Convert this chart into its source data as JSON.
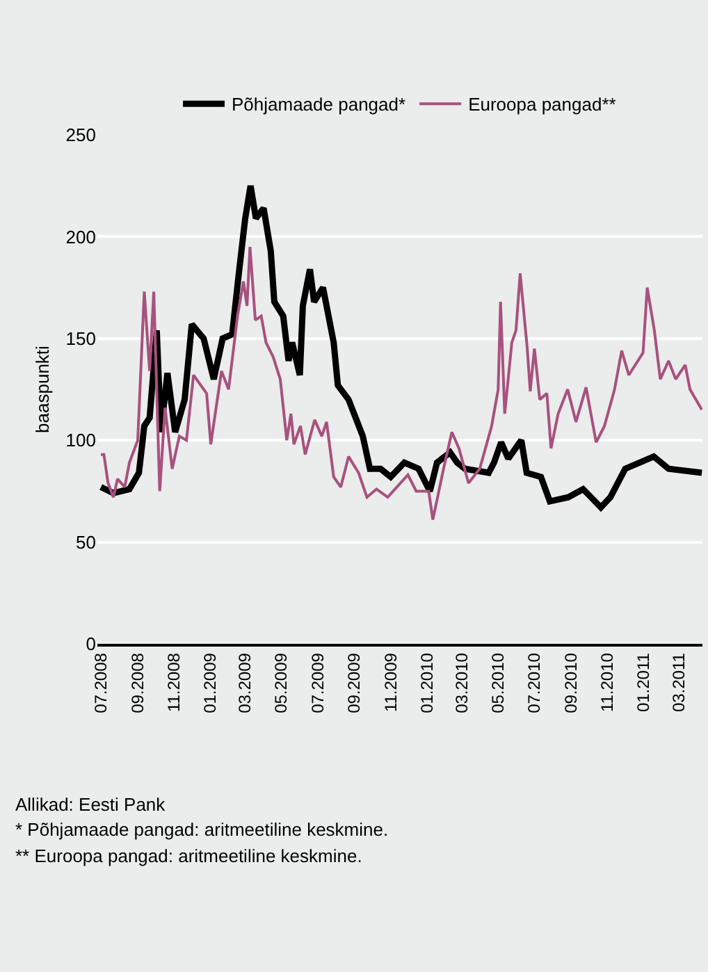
{
  "chart_data": {
    "type": "line",
    "ylabel": "baaspunkti",
    "grid": "y",
    "legend": "top",
    "xlim": [
      "2008-06-25",
      "2011-04-10"
    ],
    "xticks": [
      {
        "value": "2008-07-01",
        "label": "07.2008"
      },
      {
        "value": "2008-09-01",
        "label": "09.2008"
      },
      {
        "value": "2008-11-01",
        "label": "11.2008"
      },
      {
        "value": "2009-01-01",
        "label": "01.2009"
      },
      {
        "value": "2009-03-01",
        "label": "03.2009"
      },
      {
        "value": "2009-05-01",
        "label": "05.2009"
      },
      {
        "value": "2009-07-01",
        "label": "07.2009"
      },
      {
        "value": "2009-09-01",
        "label": "09.2009"
      },
      {
        "value": "2009-11-01",
        "label": "11.2009"
      },
      {
        "value": "2010-01-01",
        "label": "01.2010"
      },
      {
        "value": "2010-03-01",
        "label": "03.2010"
      },
      {
        "value": "2010-05-01",
        "label": "05.2010"
      },
      {
        "value": "2010-07-01",
        "label": "07.2010"
      },
      {
        "value": "2010-09-01",
        "label": "09.2010"
      },
      {
        "value": "2010-11-01",
        "label": "11.2010"
      },
      {
        "value": "2011-01-01",
        "label": "01.2011"
      },
      {
        "value": "2011-03-01",
        "label": "03.2011"
      }
    ],
    "ylim": [
      0,
      250
    ],
    "yticks": [
      0,
      50,
      100,
      150,
      200,
      250
    ],
    "series": [
      {
        "name": "Põhjamaade pangad*",
        "color": "#000000",
        "x": [
          "2008-07-01",
          "2008-07-22",
          "2008-08-18",
          "2008-09-03",
          "2008-09-12",
          "2008-09-21",
          "2008-10-03",
          "2008-10-10",
          "2008-10-21",
          "2008-11-03",
          "2008-11-19",
          "2008-12-01",
          "2008-12-21",
          "2009-01-07",
          "2009-01-22",
          "2009-02-07",
          "2009-02-19",
          "2009-03-01",
          "2009-03-10",
          "2009-03-19",
          "2009-04-01",
          "2009-04-13",
          "2009-04-19",
          "2009-05-04",
          "2009-05-13",
          "2009-05-19",
          "2009-06-01",
          "2009-06-06",
          "2009-06-18",
          "2009-06-25",
          "2009-07-10",
          "2009-07-28",
          "2009-08-04",
          "2009-08-22",
          "2009-09-15",
          "2009-09-27",
          "2009-10-15",
          "2009-11-01",
          "2009-11-24",
          "2009-12-18",
          "2010-01-06",
          "2010-01-18",
          "2010-02-09",
          "2010-02-21",
          "2010-03-06",
          "2010-04-15",
          "2010-04-24",
          "2010-05-06",
          "2010-05-18",
          "2010-06-09",
          "2010-06-18",
          "2010-07-12",
          "2010-07-27",
          "2010-08-27",
          "2010-09-21",
          "2010-10-21",
          "2010-11-06",
          "2010-12-01",
          "2011-01-18",
          "2011-02-12",
          "2011-04-09"
        ],
        "values": [
          77,
          74,
          76,
          84,
          107,
          111,
          154,
          104,
          133,
          104,
          120,
          157,
          150,
          130,
          150,
          152,
          184,
          209,
          225,
          209,
          214,
          193,
          168,
          161,
          139,
          148,
          132,
          166,
          184,
          168,
          175,
          148,
          127,
          120,
          102,
          86,
          86,
          82,
          89,
          86,
          75,
          89,
          94,
          89,
          86,
          84,
          89,
          99,
          91,
          100,
          84,
          82,
          70,
          72,
          76,
          67,
          72,
          86,
          92,
          86,
          84
        ]
      },
      {
        "name": "Euroopa pangad**",
        "color": "#a8517e",
        "x": [
          "2008-07-01",
          "2008-07-06",
          "2008-07-13",
          "2008-07-22",
          "2008-07-29",
          "2008-08-10",
          "2008-08-18",
          "2008-09-01",
          "2008-09-12",
          "2008-09-21",
          "2008-09-28",
          "2008-10-08",
          "2008-10-17",
          "2008-10-29",
          "2008-11-10",
          "2008-11-22",
          "2008-12-04",
          "2008-12-26",
          "2009-01-02",
          "2009-01-20",
          "2009-02-01",
          "2009-02-16",
          "2009-02-26",
          "2009-03-04",
          "2009-03-09",
          "2009-03-18",
          "2009-03-28",
          "2009-04-05",
          "2009-04-17",
          "2009-04-29",
          "2009-05-10",
          "2009-05-17",
          "2009-05-22",
          "2009-06-02",
          "2009-06-10",
          "2009-06-26",
          "2009-07-08",
          "2009-07-16",
          "2009-07-28",
          "2009-08-09",
          "2009-08-22",
          "2009-09-08",
          "2009-09-22",
          "2009-10-08",
          "2009-10-27",
          "2009-11-30",
          "2009-12-14",
          "2010-01-04",
          "2010-01-11",
          "2010-01-29",
          "2010-02-12",
          "2010-02-24",
          "2010-03-12",
          "2010-03-31",
          "2010-04-20",
          "2010-05-01",
          "2010-05-05",
          "2010-05-12",
          "2010-05-24",
          "2010-05-31",
          "2010-06-07",
          "2010-06-19",
          "2010-06-24",
          "2010-07-01",
          "2010-07-10",
          "2010-07-22",
          "2010-07-29",
          "2010-08-10",
          "2010-08-26",
          "2010-09-09",
          "2010-09-26",
          "2010-10-13",
          "2010-10-27",
          "2010-11-13",
          "2010-11-25",
          "2010-12-07",
          "2010-12-31",
          "2011-01-07",
          "2011-01-19",
          "2011-01-29",
          "2011-02-12",
          "2011-02-24",
          "2011-03-12",
          "2011-03-20",
          "2011-04-09"
        ],
        "values": [
          93,
          93,
          79,
          72,
          81,
          77,
          89,
          100,
          173,
          134,
          173,
          75,
          116,
          86,
          102,
          100,
          132,
          123,
          98,
          134,
          125,
          161,
          178,
          166,
          195,
          159,
          161,
          148,
          141,
          130,
          100,
          113,
          98,
          107,
          93,
          110,
          102,
          109,
          82,
          77,
          92,
          84,
          72,
          76,
          72,
          83,
          75,
          75,
          61,
          86,
          104,
          96,
          79,
          86,
          107,
          125,
          168,
          113,
          148,
          154,
          182,
          145,
          124,
          145,
          120,
          123,
          96,
          113,
          125,
          109,
          126,
          99,
          107,
          125,
          144,
          132,
          143,
          175,
          154,
          130,
          139,
          130,
          137,
          125,
          115
        ]
      }
    ],
    "annotations": [
      "Allikad: Eesti Pank",
      "* Põhjamaade pangad: aritmeetiline keskmine.",
      "** Euroopa pangad: aritmeetiline keskmine."
    ]
  }
}
